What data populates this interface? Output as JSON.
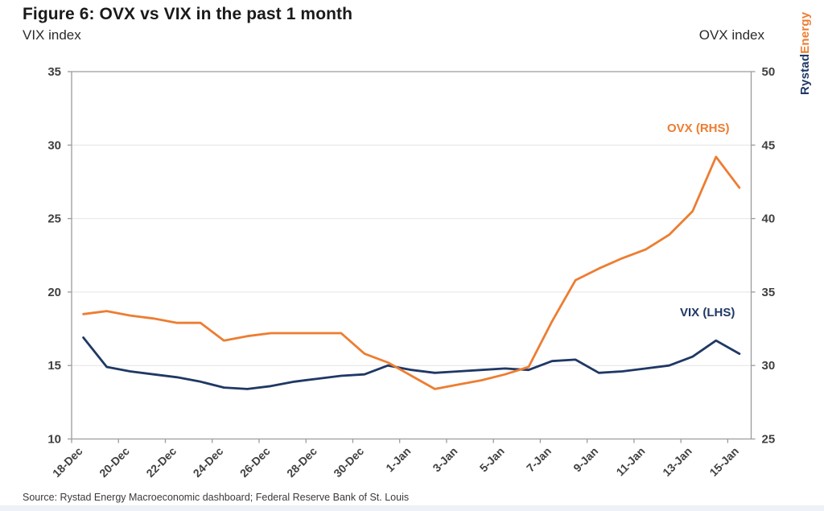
{
  "header": {
    "title": "Figure 6: OVX vs VIX in the past 1 month",
    "left_axis_title": "VIX index",
    "right_axis_title": "OVX index"
  },
  "logo": {
    "part1": "Rystad",
    "part2": "Energy"
  },
  "source": "Source: Rystad Energy Macroeconomic dashboard; Federal Reserve Bank of St. Louis",
  "colors": {
    "vix_line": "#1F3864",
    "ovx_line": "#ED7D31",
    "gridline": "#e4e4e4",
    "axis": "#9c9c9c",
    "tick_text": "#404040"
  },
  "chart_data": {
    "type": "line",
    "title": "Figure 6: OVX vs VIX in the past 1 month",
    "x": [
      "18-Dec",
      "19-Dec",
      "20-Dec",
      "21-Dec",
      "22-Dec",
      "23-Dec",
      "24-Dec",
      "25-Dec",
      "26-Dec",
      "27-Dec",
      "28-Dec",
      "29-Dec",
      "30-Dec",
      "31-Dec",
      "1-Jan",
      "2-Jan",
      "3-Jan",
      "4-Jan",
      "5-Jan",
      "6-Jan",
      "7-Jan",
      "8-Jan",
      "9-Jan",
      "10-Jan",
      "11-Jan",
      "12-Jan",
      "13-Jan",
      "14-Jan",
      "15-Jan"
    ],
    "x_tick_labels": [
      "18-Dec",
      "20-Dec",
      "22-Dec",
      "24-Dec",
      "26-Dec",
      "28-Dec",
      "30-Dec",
      "1-Jan",
      "3-Jan",
      "5-Jan",
      "7-Jan",
      "9-Jan",
      "11-Jan",
      "13-Jan",
      "15-Jan"
    ],
    "series": [
      {
        "name": "VIX",
        "label": "VIX (LHS)",
        "axis": "left",
        "color": "#1F3864",
        "values": [
          16.9,
          14.9,
          14.6,
          14.4,
          14.2,
          13.9,
          13.5,
          13.4,
          13.6,
          13.9,
          14.1,
          14.3,
          14.4,
          15.0,
          14.7,
          14.5,
          14.6,
          14.7,
          14.8,
          14.7,
          15.3,
          15.4,
          14.5,
          14.6,
          14.8,
          15.0,
          15.6,
          16.7,
          15.8
        ]
      },
      {
        "name": "OVX",
        "label": "OVX (RHS)",
        "axis": "right",
        "color": "#ED7D31",
        "values": [
          33.5,
          33.7,
          33.4,
          33.2,
          32.9,
          32.9,
          31.7,
          32.0,
          32.2,
          32.2,
          32.2,
          32.2,
          30.8,
          30.2,
          29.3,
          28.4,
          28.7,
          29.0,
          29.4,
          29.9,
          33.0,
          35.8,
          36.6,
          37.3,
          37.9,
          38.9,
          40.5,
          44.2,
          42.1
        ]
      }
    ],
    "y_left": {
      "title": "VIX index",
      "min": 10,
      "max": 35,
      "ticks": [
        10,
        15,
        20,
        25,
        30,
        35
      ]
    },
    "y_right": {
      "title": "OVX index",
      "min": 25,
      "max": 50,
      "ticks": [
        25,
        30,
        35,
        40,
        45,
        50
      ]
    },
    "grid": true,
    "legend_position": "inline-annotations"
  }
}
